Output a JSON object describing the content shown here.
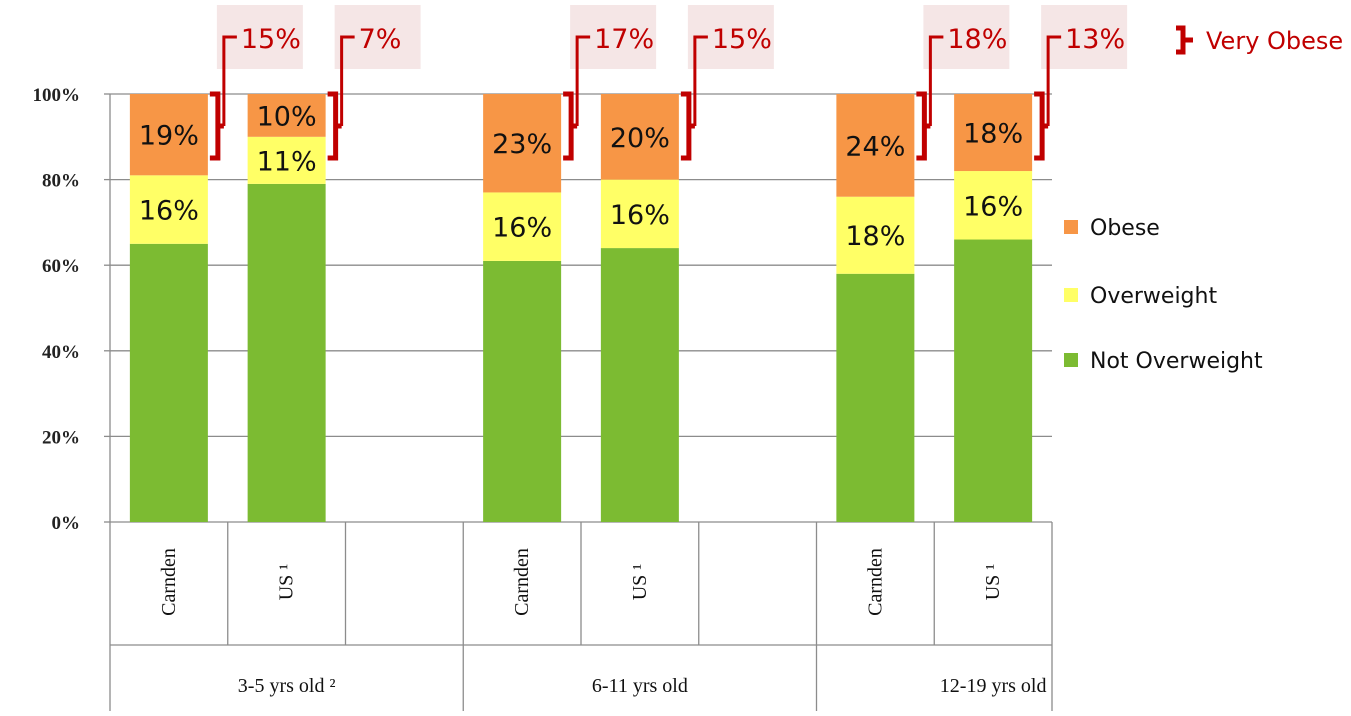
{
  "chart_data": {
    "type": "bar",
    "stacked": true,
    "y_axis": {
      "ylim": [
        0,
        100
      ],
      "ticks": [
        "0%",
        "20%",
        "40%",
        "60%",
        "80%",
        "100%"
      ]
    },
    "grid": true,
    "groups": [
      "3-5 yrs old ²",
      "6-11 yrs old",
      "12-19 yrs old"
    ],
    "bars": [
      {
        "group": 0,
        "label": "Carnden",
        "not_overweight": 65,
        "overweight": 16,
        "obese": 19,
        "very_obese": "15%"
      },
      {
        "group": 0,
        "label": "US ¹",
        "not_overweight": 79,
        "overweight": 11,
        "obese": 10,
        "very_obese": "7%"
      },
      {
        "group": 1,
        "label": "Carnden",
        "not_overweight": 61,
        "overweight": 16,
        "obese": 23,
        "very_obese": "17%"
      },
      {
        "group": 1,
        "label": "US ¹",
        "not_overweight": 64,
        "overweight": 16,
        "obese": 20,
        "very_obese": "15%"
      },
      {
        "group": 2,
        "label": "Carnden",
        "not_overweight": 58,
        "overweight": 18,
        "obese": 24,
        "very_obese": "18%"
      },
      {
        "group": 2,
        "label": "US ¹",
        "not_overweight": 66,
        "overweight": 16,
        "obese": 18,
        "very_obese": "13%"
      }
    ],
    "series": [
      {
        "key": "obese",
        "name": "Obese",
        "color": "#f79646"
      },
      {
        "key": "overweight",
        "name": "Overweight",
        "color": "#ffff66"
      },
      {
        "key": "not_overweight",
        "name": "Not Overweight",
        "color": "#7cbb32"
      }
    ],
    "legend_position": "right",
    "annotation_legend": "Very Obese",
    "annotation_color": "#c00000",
    "annotation_box_color": "#f5e6e6"
  }
}
